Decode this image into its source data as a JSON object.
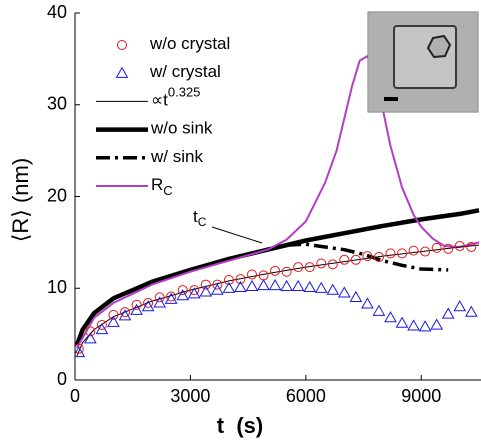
{
  "chart_data": {
    "type": "line",
    "xlabel": "t  (s)",
    "ylabel": "⟨R⟩ (nm)",
    "xlim": [
      0,
      10500
    ],
    "ylim": [
      0,
      40
    ],
    "xticks": [
      0,
      3000,
      6000,
      9000
    ],
    "yticks": [
      0,
      10,
      20,
      30,
      40
    ],
    "annotation": {
      "text": "t",
      "sub": "C"
    },
    "series": [
      {
        "name": "w/o crystal",
        "color": "#e8141d",
        "marker": "circle",
        "x": [
          100,
          400,
          700,
          1000,
          1300,
          1600,
          1900,
          2200,
          2500,
          2800,
          3100,
          3400,
          3700,
          4000,
          4300,
          4600,
          4900,
          5200,
          5500,
          5800,
          6100,
          6400,
          6700,
          7000,
          7300,
          7600,
          7900,
          8200,
          8500,
          8800,
          9100,
          9400,
          9700,
          10000,
          10300
        ],
        "values": [
          3.4,
          5.3,
          6.0,
          7.1,
          7.4,
          8.2,
          8.4,
          9.0,
          9.1,
          9.8,
          9.8,
          10.4,
          10.4,
          10.9,
          11.0,
          11.5,
          11.4,
          11.9,
          11.8,
          12.3,
          12.3,
          12.7,
          12.6,
          13.1,
          13.1,
          13.5,
          13.4,
          13.8,
          13.8,
          14.1,
          14.0,
          14.4,
          14.3,
          14.6,
          14.5
        ]
      },
      {
        "name": "w/ crystal",
        "color": "#1a1ae0",
        "marker": "triangle",
        "x": [
          100,
          400,
          700,
          1000,
          1300,
          1600,
          1900,
          2200,
          2500,
          2800,
          3100,
          3400,
          3700,
          4000,
          4300,
          4600,
          4900,
          5200,
          5500,
          5800,
          6100,
          6400,
          6700,
          7000,
          7300,
          7600,
          7900,
          8200,
          8500,
          8800,
          9100,
          9400,
          9700,
          10000,
          10300
        ],
        "values": [
          3.0,
          4.5,
          5.5,
          6.3,
          7.0,
          7.6,
          8.0,
          8.4,
          8.8,
          9.2,
          9.4,
          9.6,
          9.8,
          10.0,
          10.1,
          10.2,
          10.3,
          10.3,
          10.2,
          10.2,
          10.1,
          10.0,
          9.8,
          9.5,
          9.0,
          8.3,
          7.5,
          6.8,
          6.2,
          5.9,
          5.8,
          6.0,
          7.2,
          8.0,
          7.4
        ]
      },
      {
        "name": "∝t",
        "name_sup": "0.325",
        "color": "#000000",
        "line_width": 1,
        "x": [
          50,
          200,
          500,
          1000,
          2000,
          3000,
          4000,
          5000,
          6000,
          7000,
          8000,
          9000,
          10000,
          10500
        ],
        "values": [
          2.6,
          4.1,
          5.5,
          6.9,
          8.6,
          9.8,
          10.8,
          11.6,
          12.3,
          12.9,
          13.5,
          14.0,
          14.5,
          14.7
        ]
      },
      {
        "name": "w/o sink",
        "color": "#000000",
        "line_width": 4.5,
        "x": [
          50,
          200,
          500,
          1000,
          2000,
          3000,
          4000,
          5000,
          6000,
          7000,
          8000,
          9000,
          10000,
          10500
        ],
        "values": [
          3.8,
          5.5,
          7.3,
          8.9,
          10.7,
          12.0,
          13.2,
          14.2,
          15.2,
          16.0,
          16.8,
          17.5,
          18.1,
          18.5
        ]
      },
      {
        "name": "w/ sink",
        "color": "#000000",
        "line_width": 3.5,
        "dash": "dashdot",
        "x": [
          50,
          200,
          500,
          1000,
          2000,
          3000,
          4000,
          5000,
          5500,
          6000,
          6500,
          7000,
          7500,
          8000,
          8500,
          9000,
          9700
        ],
        "values": [
          3.8,
          5.5,
          7.3,
          8.9,
          10.7,
          12.0,
          13.2,
          14.2,
          14.7,
          14.8,
          14.5,
          14.2,
          13.7,
          13.0,
          12.5,
          12.1,
          12.0
        ]
      },
      {
        "name": "R",
        "name_sub": "C",
        "color": "#b43cc8",
        "line_width": 2,
        "x": [
          50,
          500,
          1000,
          2000,
          3000,
          4000,
          5000,
          5500,
          6000,
          6500,
          6800,
          7000,
          7200,
          7400,
          7600,
          7800,
          8000,
          8200,
          8500,
          8800,
          9000,
          9300,
          9600,
          10000,
          10500
        ],
        "values": [
          3.5,
          6.8,
          8.4,
          10.4,
          11.8,
          13.0,
          14.2,
          15.3,
          17.3,
          21.5,
          25,
          28.5,
          32,
          34.8,
          35.3,
          33,
          29.5,
          25.5,
          21,
          18,
          16.7,
          15.4,
          14.6,
          14.5,
          15.0
        ]
      }
    ]
  }
}
